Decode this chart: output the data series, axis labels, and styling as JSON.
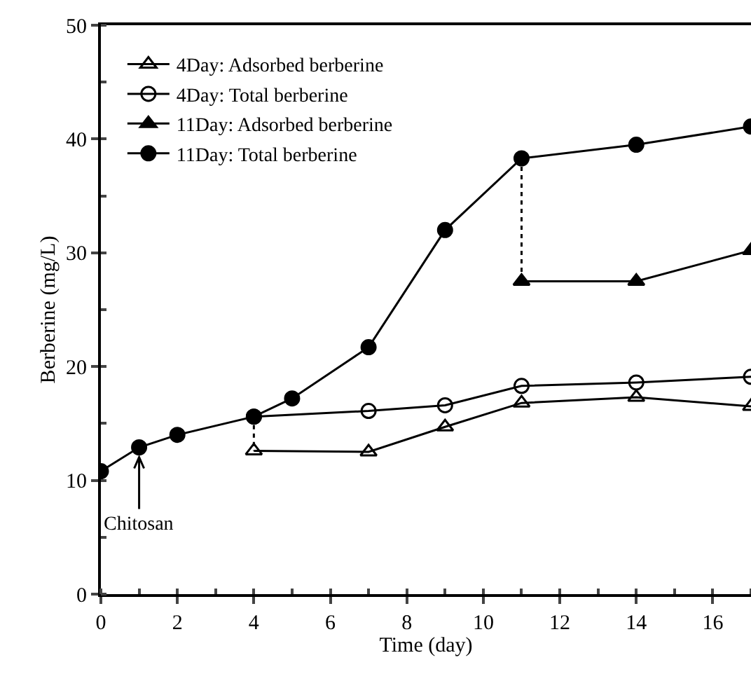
{
  "chart_data": {
    "type": "line",
    "xlabel": "Time (day)",
    "ylabel": "Berberine (mg/L)",
    "xlim": [
      0,
      17
    ],
    "xticks": [
      0,
      2,
      4,
      6,
      8,
      10,
      12,
      14,
      16
    ],
    "ylim": [
      0,
      50
    ],
    "yticks": [
      0,
      10,
      20,
      30,
      40,
      50
    ],
    "grid": false,
    "legend": "top left",
    "series": [
      {
        "name": "4Day: Adsorbed berberine",
        "color": "#000000",
        "marker": "triangle-open",
        "x": [
          4,
          7,
          9,
          11,
          14,
          17
        ],
        "values": [
          12.6,
          12.5,
          14.7,
          16.8,
          17.3,
          16.5
        ]
      },
      {
        "name": "4Day: Total berberine",
        "color": "#000000",
        "marker": "circle-open",
        "x": [
          4,
          7,
          9,
          11,
          14,
          17
        ],
        "values": [
          15.6,
          16.1,
          16.6,
          18.3,
          18.6,
          19.1
        ]
      },
      {
        "name": "11Day: Adsorbed berberine",
        "color": "#000000",
        "marker": "triangle",
        "x": [
          11,
          14,
          17
        ],
        "values": [
          27.5,
          27.5,
          30.2
        ]
      },
      {
        "color": "#000000",
        "line_style": "dotted",
        "x": [
          4,
          4
        ],
        "values": [
          15.6,
          12.6
        ]
      },
      {
        "color": "#000000",
        "line_style": "dotted",
        "x": [
          11,
          11
        ],
        "values": [
          38.3,
          27.5
        ]
      },
      {
        "name": "11Day: Total berberine",
        "color": "#000000",
        "marker": "circle",
        "x": [
          0,
          1,
          2,
          4,
          5,
          7,
          9,
          11,
          14,
          17
        ],
        "values": [
          10.8,
          12.9,
          14.0,
          15.6,
          17.2,
          21.7,
          32.0,
          38.3,
          39.5,
          41.1
        ]
      }
    ],
    "annotations": [
      {
        "text": "Chitosan",
        "x": 1,
        "y": 12.9
      }
    ]
  }
}
